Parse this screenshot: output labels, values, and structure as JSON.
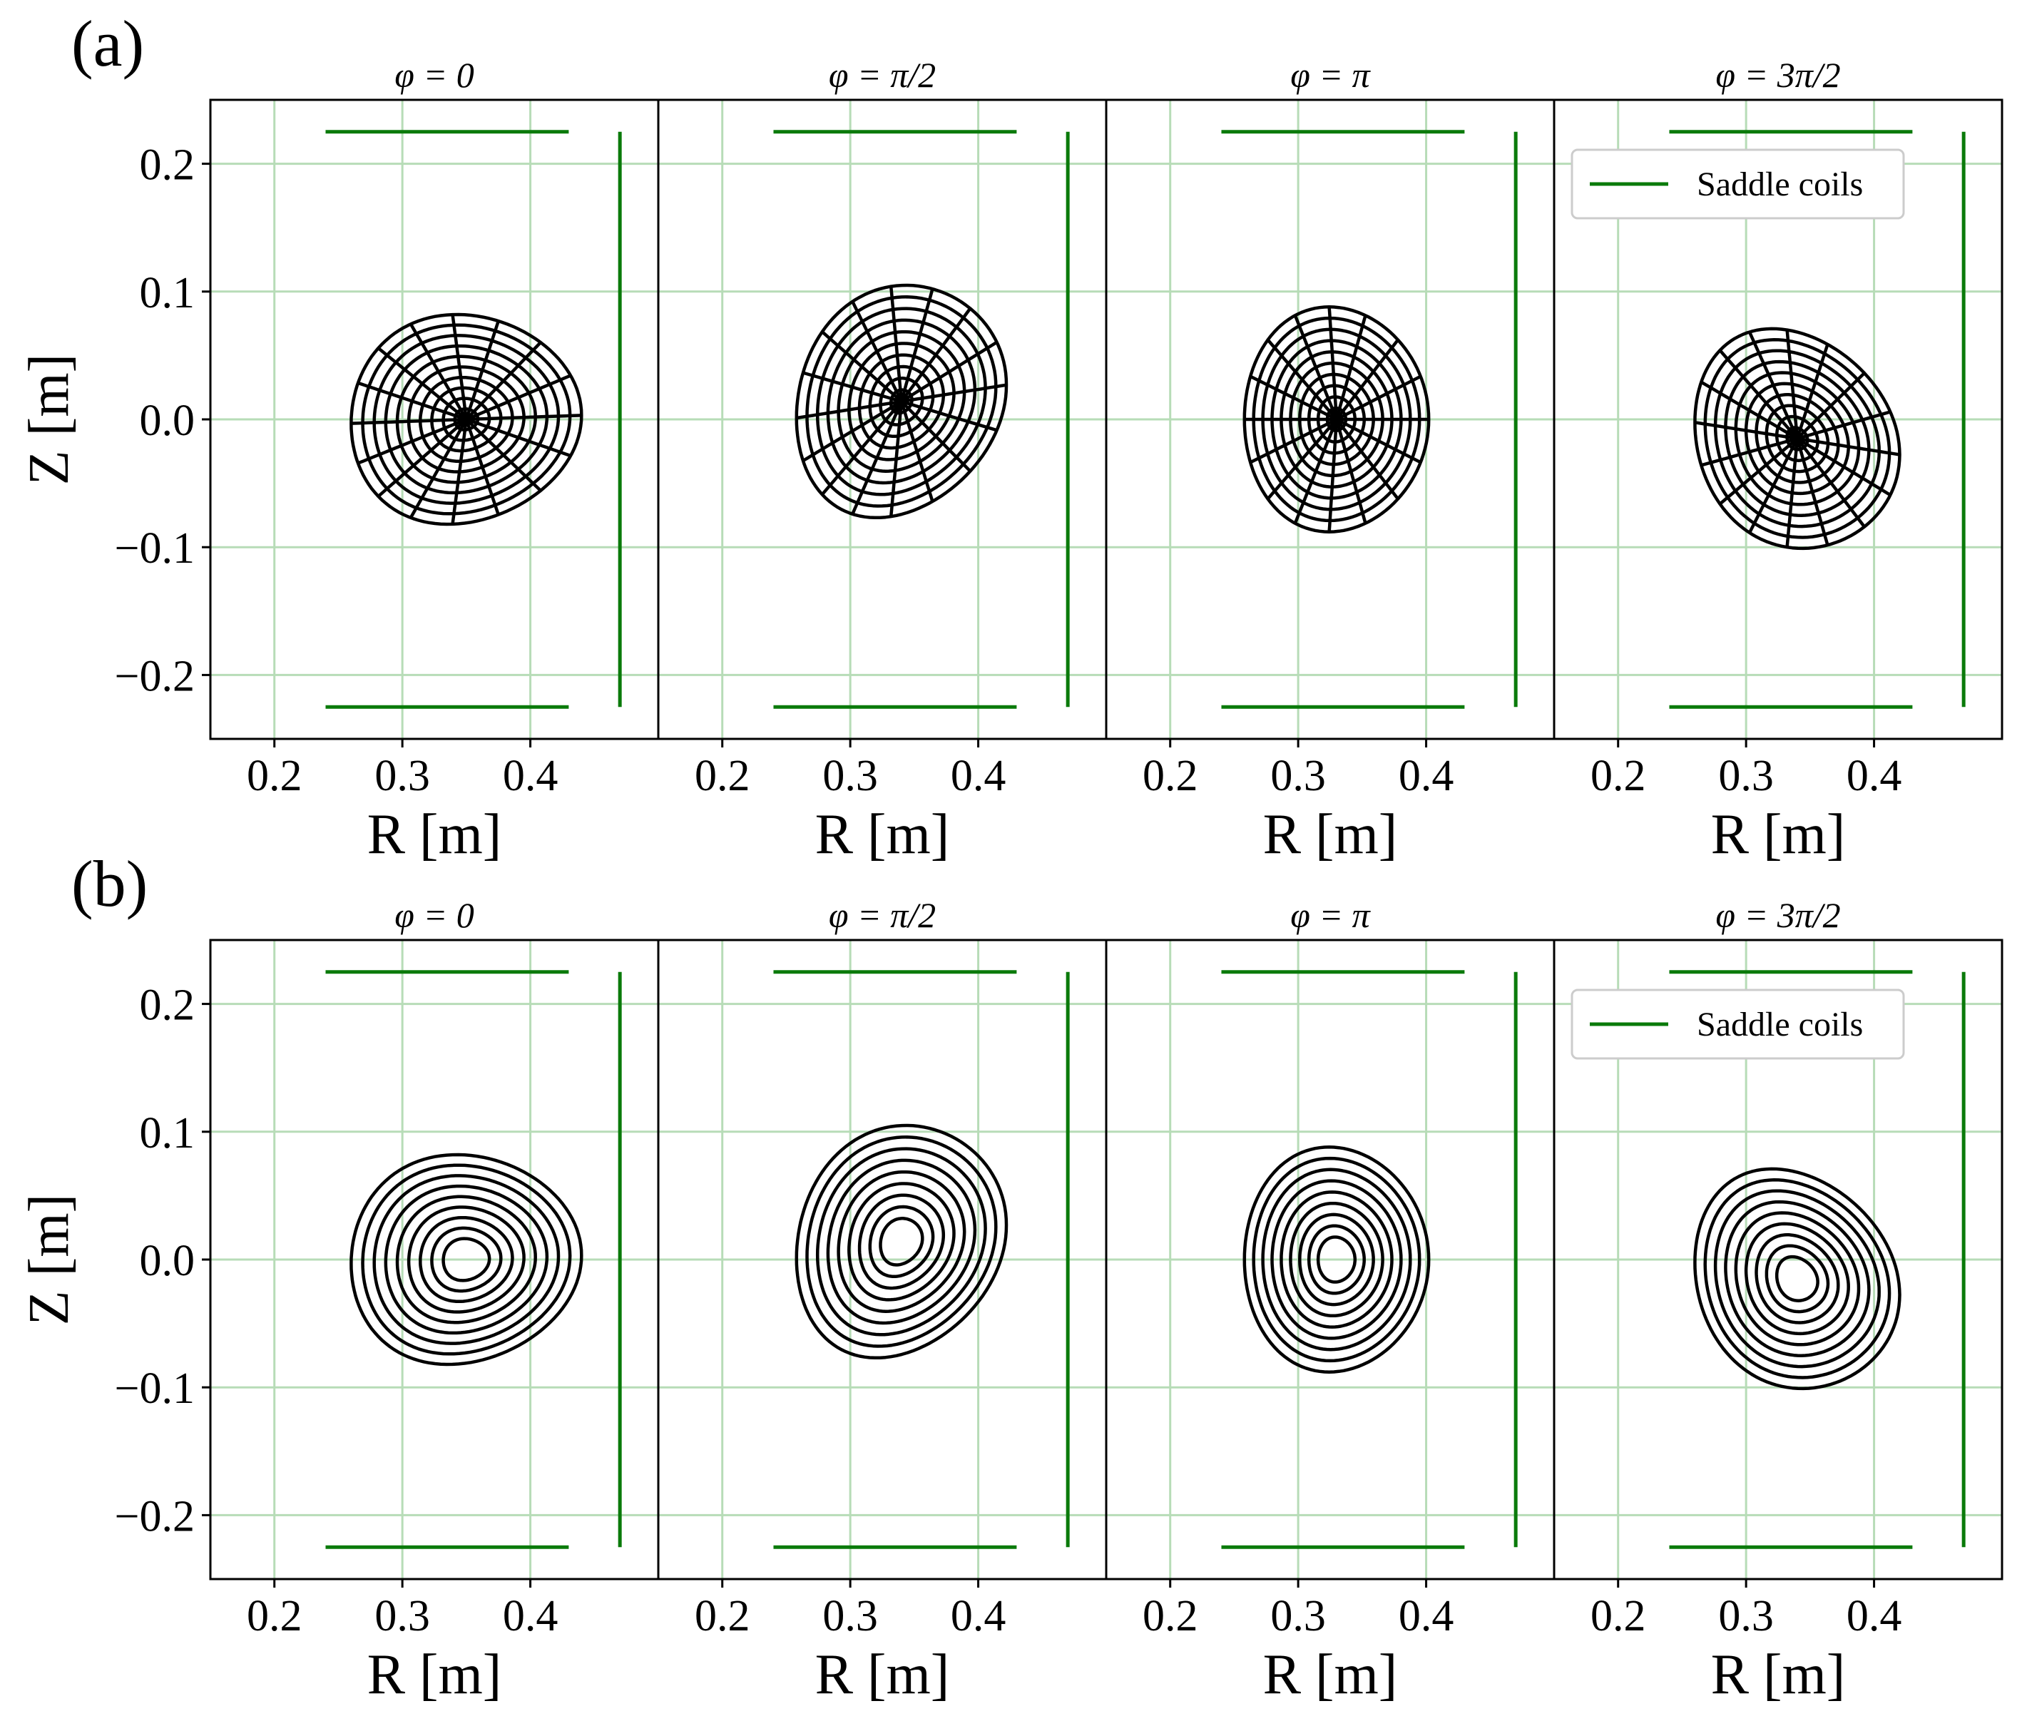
{
  "figure": {
    "rows": [
      {
        "label": "(a)",
        "style": "grid",
        "panels": [
          {
            "title": "φ = 0",
            "center": [
              0.35,
              0.0
            ],
            "scale": [
              0.09,
              0.082
            ],
            "tilt": 0.1,
            "tri": 0.12
          },
          {
            "title": "φ = π/2",
            "center": [
              0.34,
              0.014
            ],
            "scale": [
              0.082,
              0.09
            ],
            "tilt": 0.45,
            "tri": 0.1
          },
          {
            "title": "φ = π",
            "center": [
              0.33,
              0.0
            ],
            "scale": [
              0.072,
              0.088
            ],
            "tilt": 0.0,
            "tri": 0.08
          },
          {
            "title": "φ = 3π/2",
            "center": [
              0.34,
              -0.015
            ],
            "scale": [
              0.08,
              0.085
            ],
            "tilt": -0.45,
            "tri": 0.1
          }
        ]
      },
      {
        "label": "(b)",
        "style": "contour",
        "panels": [
          {
            "title": "φ = 0",
            "center": [
              0.35,
              0.0
            ],
            "scale": [
              0.09,
              0.082
            ],
            "tilt": 0.1,
            "tri": 0.12
          },
          {
            "title": "φ = π/2",
            "center": [
              0.34,
              0.014
            ],
            "scale": [
              0.082,
              0.09
            ],
            "tilt": 0.45,
            "tri": 0.1
          },
          {
            "title": "φ = π",
            "center": [
              0.33,
              0.0
            ],
            "scale": [
              0.072,
              0.088
            ],
            "tilt": 0.0,
            "tri": 0.08
          },
          {
            "title": "φ = 3π/2",
            "center": [
              0.34,
              -0.015
            ],
            "scale": [
              0.08,
              0.085
            ],
            "tilt": -0.45,
            "tri": 0.1
          }
        ]
      }
    ]
  },
  "chart_data": {
    "type": "line",
    "xlabel": "R [m]",
    "ylabel": "Z [m]",
    "xlim": [
      0.15,
      0.5
    ],
    "ylim": [
      -0.25,
      0.25
    ],
    "xticks": [
      "0.2",
      "0.3",
      "0.4"
    ],
    "xtick_values": [
      0.2,
      0.3,
      0.4
    ],
    "yticks": [
      "−0.2",
      "−0.1",
      "0.0",
      "0.1",
      "0.2"
    ],
    "ytick_values": [
      -0.2,
      -0.1,
      0.0,
      0.1,
      0.2
    ],
    "grid": true,
    "legend": {
      "entry": "Saddle coils",
      "placement": "top-right of last panel"
    },
    "saddle_coils": {
      "top": {
        "r": [
          0.24,
          0.43
        ],
        "z": 0.225
      },
      "bottom": {
        "r": [
          0.24,
          0.43
        ],
        "z": -0.225
      },
      "side": {
        "r": 0.47,
        "z": [
          -0.225,
          0.225
        ]
      }
    },
    "num_surfaces": 10,
    "num_spokes": 16,
    "colors": {
      "coil": "#0a7a0a",
      "grid": "#b7dcb7",
      "surface": "#000000"
    }
  }
}
